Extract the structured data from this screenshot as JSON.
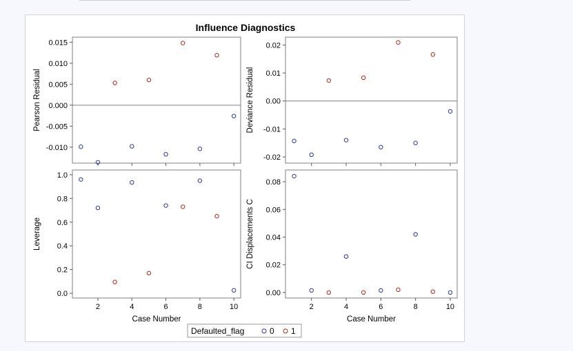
{
  "chart_data": {
    "title": "Influence Diagnostics",
    "type": "scatter",
    "x": [
      1,
      2,
      3,
      4,
      5,
      6,
      7,
      8,
      9,
      10
    ],
    "group": [
      0,
      0,
      1,
      0,
      1,
      0,
      1,
      0,
      1,
      0
    ],
    "legend": {
      "title": "Defaulted_flag",
      "entries": [
        {
          "label": "0",
          "color": "#2a3990"
        },
        {
          "label": "1",
          "color": "#a52a1a"
        }
      ],
      "position": "bottom-center"
    },
    "panels": [
      {
        "name": "pearson",
        "ylabel": "Pearson Residual",
        "xlabel": "",
        "ylim": [
          -0.0138,
          0.0162
        ],
        "yticks": [
          -0.01,
          -0.005,
          0.0,
          0.005,
          0.01,
          0.015
        ],
        "ytick_labels": [
          "-0.010",
          "-0.005",
          "0.000",
          "0.005",
          "0.010",
          "0.015"
        ],
        "refline": 0,
        "values": [
          -0.0099,
          -0.0136,
          0.0053,
          -0.0098,
          0.006,
          -0.0117,
          0.0148,
          -0.0104,
          0.0119,
          -0.0026
        ]
      },
      {
        "name": "deviance",
        "ylabel": "Deviance Residual",
        "xlabel": "",
        "ylim": [
          -0.0222,
          0.0228
        ],
        "yticks": [
          -0.02,
          -0.01,
          0.0,
          0.01,
          0.02
        ],
        "ytick_labels": [
          "-0.02",
          "-0.01",
          "0.00",
          "0.01",
          "0.02"
        ],
        "refline": 0,
        "values": [
          -0.0143,
          -0.0192,
          0.0073,
          -0.014,
          0.0083,
          -0.0165,
          0.0209,
          -0.015,
          0.0166,
          -0.0037
        ]
      },
      {
        "name": "leverage",
        "ylabel": "Leverage",
        "xlabel": "Case Number",
        "ylim": [
          -0.04,
          1.04
        ],
        "yticks": [
          0.0,
          0.2,
          0.4,
          0.6,
          0.8,
          1.0
        ],
        "ytick_labels": [
          "0.0",
          "0.2",
          "0.4",
          "0.6",
          "0.8",
          "1.0"
        ],
        "refline": null,
        "values": [
          0.96,
          0.72,
          0.095,
          0.935,
          0.17,
          0.74,
          0.73,
          0.95,
          0.65,
          0.025
        ]
      },
      {
        "name": "ci",
        "ylabel": "CI Displacements C",
        "xlabel": "Case Number",
        "ylim": [
          -0.004,
          0.0885
        ],
        "yticks": [
          0.0,
          0.02,
          0.04,
          0.06,
          0.08
        ],
        "ytick_labels": [
          "0.00",
          "0.02",
          "0.04",
          "0.06",
          "0.08"
        ],
        "refline": null,
        "values": [
          0.084,
          0.0015,
          0.0,
          0.026,
          0.0,
          0.0015,
          0.002,
          0.042,
          0.0006,
          0.0
        ]
      }
    ],
    "xlim": [
      0.5,
      10.4
    ],
    "xticks": [
      2,
      4,
      6,
      8,
      10
    ],
    "xtick_labels": [
      "2",
      "4",
      "6",
      "8",
      "10"
    ]
  }
}
